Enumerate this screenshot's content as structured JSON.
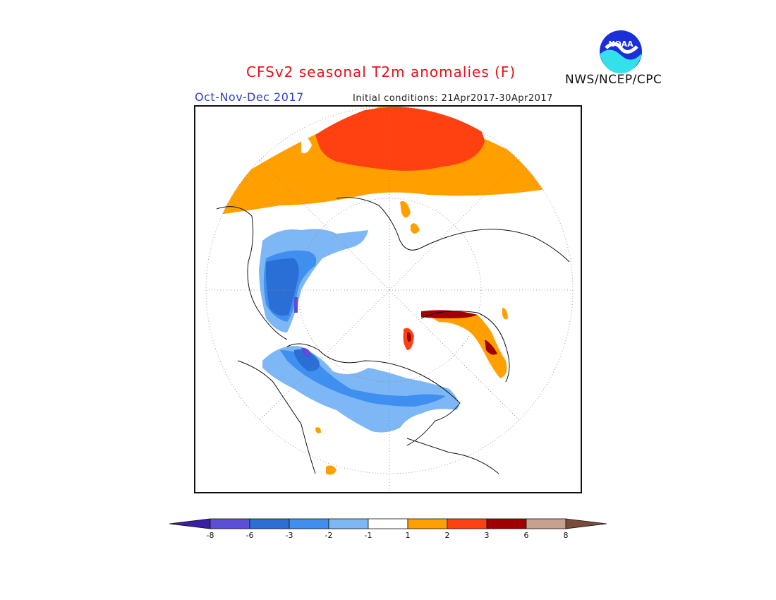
{
  "header": {
    "title": "CFSv2 seasonal T2m anomalies (F)",
    "season": "Oct-Nov-Dec 2017",
    "initial_conditions": "Initial conditions: 21Apr2017-30Apr2017",
    "agency": "NWS/NCEP/CPC",
    "logo_text": "NOAA"
  },
  "legend": {
    "tick_labels": [
      "-8",
      "-6",
      "-3",
      "-2",
      "-1",
      "1",
      "2",
      "3",
      "6",
      "8"
    ],
    "colors": [
      "#3a1fa6",
      "#5a4fd6",
      "#2a6fd6",
      "#3f8ff0",
      "#7db7f5",
      "#ffffff",
      "#ffa000",
      "#ff4010",
      "#a00000",
      "#c8a090",
      "#7a4a3a"
    ]
  },
  "map": {
    "projection": "north-polar-stereographic",
    "fill_colors": {
      "cold_1": "#7db7f5",
      "cold_2": "#3f8ff0",
      "cold_3": "#2a6fd6",
      "cold_4": "#5a4fd6",
      "warm_1": "#ffa000",
      "warm_2": "#ff4010",
      "warm_3": "#a00000",
      "warm_4": "#c8a090"
    }
  }
}
